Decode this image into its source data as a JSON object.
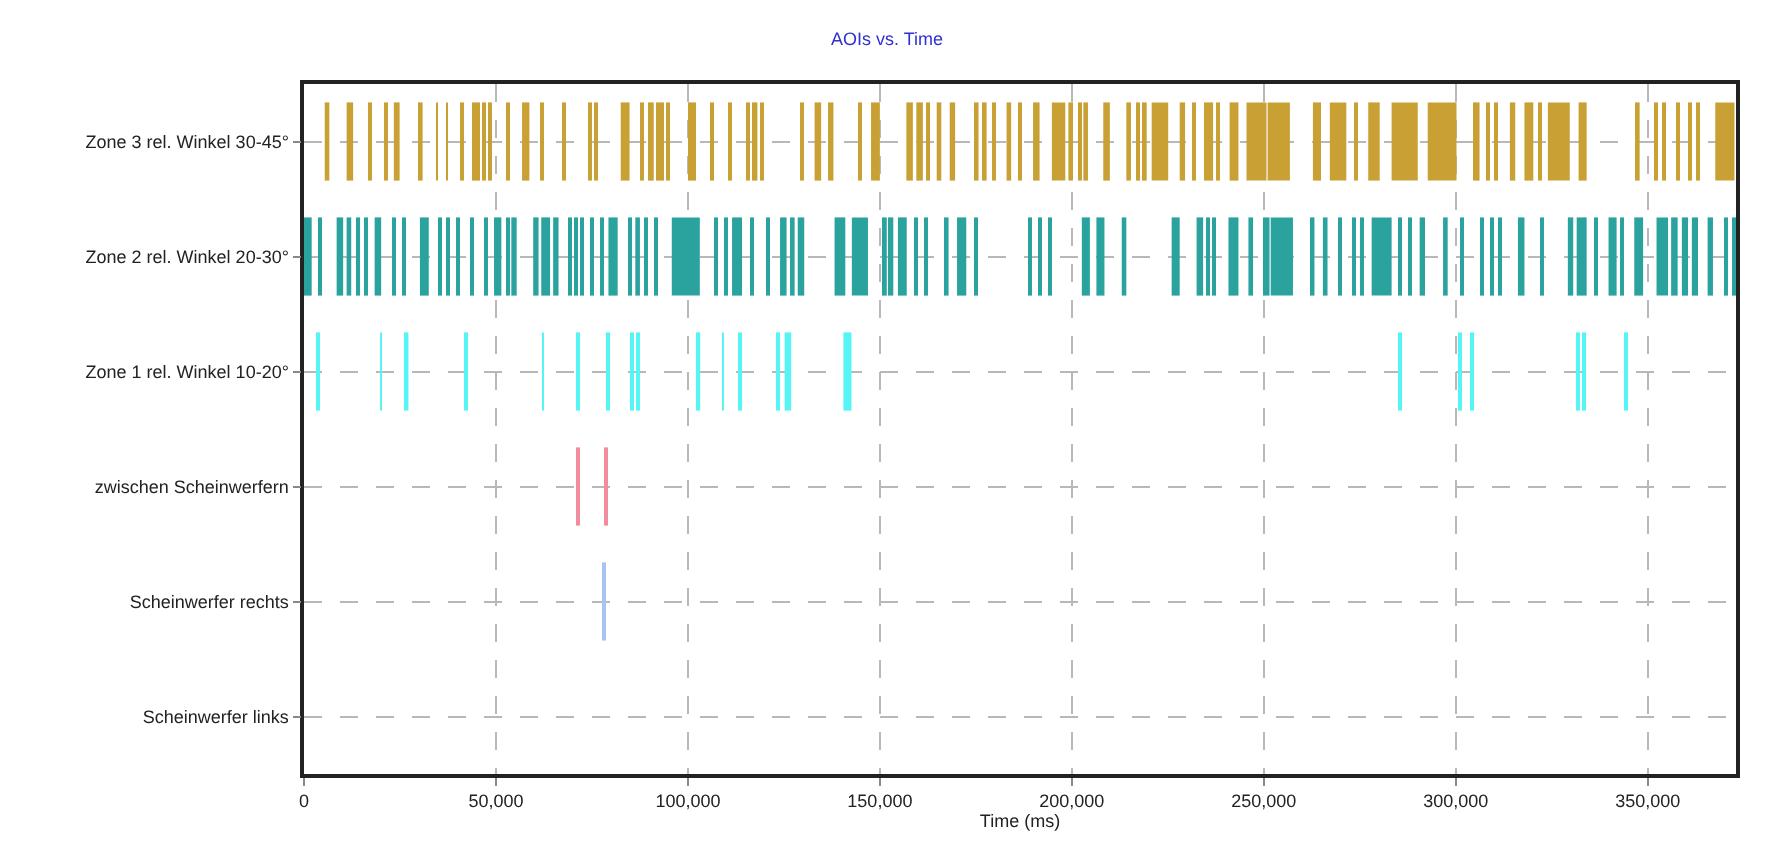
{
  "chart_data": {
    "type": "bar",
    "orientation": "horizontal",
    "title": "AOIs vs. Time",
    "xlabel": "Time (ms)",
    "categories": [
      "Zone 3 rel. Winkel 30-45°",
      "Zone 2 rel. Winkel 20-30°",
      "Zone 1 rel. Winkel 10-20°",
      "zwischen Scheinwerfern",
      "Scheinwerfer rechts",
      "Scheinwerfer links"
    ],
    "xlim": [
      0,
      373000
    ],
    "xticks": [
      0,
      {
        "value": 50000,
        "label": "50,000"
      },
      {
        "value": 100000,
        "label": "100,000"
      },
      {
        "value": 150000,
        "label": "150,000"
      },
      {
        "value": 200000,
        "label": "200,000"
      },
      {
        "value": 250000,
        "label": "250,000"
      },
      {
        "value": 300000,
        "label": "300,000"
      },
      {
        "value": 350000,
        "label": "350,000"
      }
    ],
    "grid": true,
    "series": [
      {
        "base": [
          5400,
          0,
          3300,
          71000,
          78100,
          null
        ],
        "values": [
          1200,
          2000,
          500,
          500,
          500,
          null
        ],
        "colors": [
          "#c9a033",
          "#2aa39f",
          "#55f5f5",
          "#f08c9c",
          "#a8c4f0",
          null
        ]
      },
      {
        "base": [
          11100,
          3800,
          19800,
          78500,
          null,
          null
        ],
        "values": [
          1700,
          900,
          500,
          500,
          null,
          null
        ],
        "colors": [
          "#c9a033",
          "#2aa39f",
          "#55f5f5",
          "#f08c9c",
          "#a8c4f0",
          null
        ]
      },
      {
        "base": [
          16800,
          8500,
          26200,
          null,
          null,
          null
        ],
        "values": [
          700,
          1700,
          1000,
          null,
          null,
          null
        ],
        "colors": [
          "#c9a033",
          "#2aa39f",
          "#55f5f5",
          "#f08c9c",
          "#a8c4f0",
          null
        ]
      },
      {
        "base": [
          21000,
          11100,
          42000,
          null,
          null,
          null
        ],
        "values": [
          700,
          1200,
          500,
          null,
          null,
          null
        ],
        "colors": [
          "#c9a033",
          "#2aa39f",
          "#55f5f5",
          "#f08c9c",
          "#a8c4f0",
          null
        ]
      },
      {
        "base": [
          23400,
          13700,
          62000,
          null,
          null,
          null
        ],
        "values": [
          1500,
          900,
          500,
          null,
          null,
          null
        ],
        "colors": [
          "#c9a033",
          "#2aa39f",
          "#55f5f5",
          "#f08c9c",
          "#a8c4f0",
          null
        ]
      },
      {
        "base": [
          29900,
          15800,
          71000,
          null,
          null,
          null
        ],
        "values": [
          1000,
          500,
          500,
          null,
          null,
          null
        ],
        "colors": [
          "#c9a033",
          "#2aa39f",
          "#55f5f5",
          "#f08c9c",
          "#a8c4f0",
          null
        ]
      },
      {
        "base": [
          34400,
          18400,
          78800,
          null,
          null,
          null
        ],
        "values": [
          500,
          1700,
          500,
          null,
          null,
          null
        ],
        "colors": [
          "#c9a033",
          "#2aa39f",
          "#55f5f5",
          "#f08c9c",
          "#a8c4f0",
          null
        ]
      },
      {
        "base": [
          37000,
          23300,
          85400,
          null,
          null,
          null
        ],
        "values": [
          500,
          500,
          500,
          null,
          null,
          null
        ],
        "colors": [
          "#c9a033",
          "#2aa39f",
          "#55f5f5",
          "#f08c9c",
          "#a8c4f0",
          null
        ]
      },
      {
        "base": [
          40800,
          25900,
          86900,
          null,
          null,
          null
        ],
        "values": [
          500,
          500,
          500,
          null,
          null,
          null
        ],
        "colors": [
          "#c9a033",
          "#2aa39f",
          "#55f5f5",
          "#f08c9c",
          "#a8c4f0",
          null
        ]
      },
      {
        "base": [
          43900,
          30200,
          102300,
          null,
          null,
          null
        ],
        "values": [
          600,
          2300,
          900,
          null,
          null,
          null
        ],
        "colors": [
          "#c9a033",
          "#2aa39f",
          "#55f5f5",
          "#f08c9c",
          "#a8c4f0",
          null
        ]
      },
      {
        "base": [
          45300,
          35400,
          108900,
          null,
          null,
          null
        ],
        "values": [
          500,
          500,
          500,
          null,
          null,
          null
        ],
        "colors": [
          "#c9a033",
          "#2aa39f",
          "#55f5f5",
          "#f08c9c",
          "#a8c4f0",
          null
        ]
      },
      {
        "base": [
          46700,
          37500,
          113200,
          null,
          null,
          null
        ],
        "values": [
          500,
          500,
          500,
          null,
          null,
          null
        ],
        "colors": [
          "#c9a033",
          "#2aa39f",
          "#55f5f5",
          "#f08c9c",
          "#a8c4f0",
          null
        ]
      },
      {
        "base": [
          48100,
          40100,
          123100,
          null,
          null,
          null
        ],
        "values": [
          500,
          500,
          500,
          null,
          null,
          null
        ],
        "colors": [
          "#c9a033",
          "#2aa39f",
          "#55f5f5",
          "#f08c9c",
          "#a8c4f0",
          null
        ]
      },
      {
        "base": [
          52800,
          43700,
          125200,
          null,
          null,
          null
        ],
        "values": [
          500,
          500,
          1700,
          null,
          null,
          null
        ],
        "colors": [
          "#c9a033",
          "#2aa39f",
          "#55f5f5",
          "#f08c9c",
          "#a8c4f0",
          null
        ]
      },
      {
        "base": [
          56800,
          47000,
          140500,
          null,
          null,
          null
        ],
        "values": [
          1900,
          500,
          2100,
          null,
          null,
          null
        ],
        "colors": [
          "#c9a033",
          "#2aa39f",
          "#55f5f5",
          "#f08c9c",
          "#a8c4f0",
          null
        ]
      },
      {
        "base": [
          61500,
          49500,
          285100,
          null,
          null,
          null
        ],
        "values": [
          500,
          1900,
          500,
          null,
          null,
          null
        ],
        "colors": [
          "#c9a033",
          "#2aa39f",
          "#55f5f5",
          "#f08c9c",
          "#a8c4f0",
          null
        ]
      },
      {
        "base": [
          67500,
          52800,
          300700,
          null,
          null,
          null
        ],
        "values": [
          500,
          500,
          500,
          null,
          null,
          null
        ],
        "colors": [
          "#c9a033",
          "#2aa39f",
          "#55f5f5",
          "#f08c9c",
          "#a8c4f0",
          null
        ]
      },
      {
        "base": [
          74000,
          54000,
          304200,
          null,
          null,
          null
        ],
        "values": [
          700,
          1400,
          500,
          null,
          null,
          null
        ],
        "colors": [
          "#c9a033",
          "#2aa39f",
          "#55f5f5",
          "#f08c9c",
          "#a8c4f0",
          null
        ]
      },
      {
        "base": [
          76000,
          59700,
          331400,
          null,
          null,
          null
        ],
        "values": [
          500,
          1400,
          500,
          null,
          null,
          null
        ],
        "colors": [
          "#c9a033",
          "#2aa39f",
          "#55f5f5",
          "#f08c9c",
          "#a8c4f0",
          null
        ]
      },
      {
        "base": [
          82500,
          61800,
          333200,
          null,
          null,
          null
        ],
        "values": [
          2300,
          2300,
          500,
          null,
          null,
          null
        ],
        "colors": [
          "#c9a033",
          "#2aa39f",
          "#55f5f5",
          "#f08c9c",
          "#a8c4f0",
          null
        ]
      },
      {
        "base": [
          87700,
          64900,
          344100,
          null,
          null,
          null
        ],
        "values": [
          500,
          1400,
          500,
          null,
          null,
          null
        ],
        "colors": [
          "#c9a033",
          "#2aa39f",
          "#55f5f5",
          "#f08c9c",
          "#a8c4f0",
          null
        ]
      },
      {
        "base": [
          90100,
          68900,
          null,
          null,
          null,
          null
        ],
        "values": [
          1000,
          500,
          null,
          null,
          null,
          null
        ],
        "colors": [
          "#c9a033",
          "#2aa39f",
          "#55f5f5",
          "#f08c9c",
          "#a8c4f0",
          null
        ]
      },
      {
        "base": [
          92000,
          70500,
          null,
          null,
          null,
          null
        ],
        "values": [
          500,
          500,
          null,
          null,
          null,
          null
        ],
        "colors": [
          "#c9a033",
          "#2aa39f",
          "#55f5f5",
          "#f08c9c",
          "#a8c4f0",
          null
        ]
      },
      {
        "base": [
          92900,
          72400,
          null,
          null,
          null,
          null
        ],
        "values": [
          500,
          500,
          null,
          null,
          null,
          null
        ],
        "colors": [
          "#c9a033",
          "#2aa39f",
          "#55f5f5",
          "#f08c9c",
          "#a8c4f0",
          null
        ]
      },
      {
        "base": [
          94600,
          74800,
          null,
          null,
          null,
          null
        ],
        "values": [
          500,
          500,
          null,
          null,
          null,
          null
        ],
        "colors": [
          "#c9a033",
          "#2aa39f",
          "#55f5f5",
          "#f08c9c",
          "#a8c4f0",
          null
        ]
      },
      {
        "base": [
          100500,
          77400,
          null,
          null,
          null,
          null
        ],
        "values": [
          500,
          500,
          null,
          null,
          null,
          null
        ],
        "colors": [
          "#c9a033",
          "#2aa39f",
          "#55f5f5",
          "#f08c9c",
          "#a8c4f0",
          null
        ]
      },
      {
        "base": [
          101400,
          79300,
          null,
          null,
          null,
          null
        ],
        "values": [
          500,
          2400,
          null,
          null,
          null,
          null
        ],
        "colors": [
          "#c9a033",
          "#2aa39f",
          "#55f5f5",
          "#f08c9c",
          "#a8c4f0",
          null
        ]
      },
      {
        "base": [
          106100,
          84900,
          null,
          null,
          null,
          null
        ],
        "values": [
          500,
          500,
          null,
          null,
          null,
          null
        ],
        "colors": [
          "#c9a033",
          "#2aa39f",
          "#55f5f5",
          "#f08c9c",
          "#a8c4f0",
          null
        ]
      },
      {
        "base": [
          110800,
          86300,
          null,
          null,
          null,
          null
        ],
        "values": [
          500,
          1200,
          null,
          null,
          null,
          null
        ],
        "colors": [
          "#c9a033",
          "#2aa39f",
          "#55f5f5",
          "#f08c9c",
          "#a8c4f0",
          null
        ]
      },
      {
        "base": [
          115300,
          88900,
          null,
          null,
          null,
          null
        ],
        "values": [
          500,
          500,
          null,
          null,
          null,
          null
        ],
        "colors": [
          "#c9a033",
          "#2aa39f",
          "#55f5f5",
          "#f08c9c",
          "#a8c4f0",
          null
        ]
      },
      {
        "base": [
          117200,
          91300,
          null,
          null,
          null,
          null
        ],
        "values": [
          900,
          500,
          null,
          null,
          null,
          null
        ],
        "colors": [
          "#c9a033",
          "#2aa39f",
          "#55f5f5",
          "#f08c9c",
          "#a8c4f0",
          null
        ]
      },
      {
        "base": [
          118900,
          95800,
          null,
          null,
          null,
          null
        ],
        "values": [
          900,
          7300,
          null,
          null,
          null,
          null
        ],
        "colors": [
          "#c9a033",
          "#2aa39f",
          "#55f5f5",
          "#f08c9c",
          "#a8c4f0",
          null
        ]
      },
      {
        "base": [
          129700,
          106900,
          null,
          null,
          null,
          null
        ],
        "values": [
          500,
          500,
          null,
          null,
          null,
          null
        ],
        "colors": [
          "#c9a033",
          "#2aa39f",
          "#55f5f5",
          "#f08c9c",
          "#a8c4f0",
          null
        ]
      },
      {
        "base": [
          133000,
          109500,
          null,
          null,
          null,
          null
        ],
        "values": [
          1700,
          500,
          null,
          null,
          null,
          null
        ],
        "colors": [
          "#c9a033",
          "#2aa39f",
          "#55f5f5",
          "#f08c9c",
          "#a8c4f0",
          null
        ]
      },
      {
        "base": [
          136500,
          111500,
          null,
          null,
          null,
          null
        ],
        "values": [
          1400,
          2600,
          null,
          null,
          null,
          null
        ],
        "colors": [
          "#c9a033",
          "#2aa39f",
          "#55f5f5",
          "#f08c9c",
          "#a8c4f0",
          null
        ]
      },
      {
        "base": [
          144400,
          116300,
          null,
          null,
          null,
          null
        ],
        "values": [
          500,
          500,
          null,
          null,
          null,
          null
        ],
        "colors": [
          "#c9a033",
          "#2aa39f",
          "#55f5f5",
          "#f08c9c",
          "#a8c4f0",
          null
        ]
      },
      {
        "base": [
          147700,
          120700,
          null,
          null,
          null,
          null
        ],
        "values": [
          2300,
          500,
          null,
          null,
          null,
          null
        ],
        "colors": [
          "#c9a033",
          "#2aa39f",
          "#55f5f5",
          "#f08c9c",
          "#a8c4f0",
          null
        ]
      },
      {
        "base": [
          156900,
          124000,
          null,
          null,
          null,
          null
        ],
        "values": [
          1700,
          1700,
          null,
          null,
          null,
          null
        ],
        "colors": [
          "#c9a033",
          "#2aa39f",
          "#55f5f5",
          "#f08c9c",
          "#a8c4f0",
          null
        ]
      },
      {
        "base": [
          159500,
          126600,
          null,
          null,
          null,
          null
        ],
        "values": [
          1700,
          1200,
          null,
          null,
          null,
          null
        ],
        "colors": [
          "#c9a033",
          "#2aa39f",
          "#55f5f5",
          "#f08c9c",
          "#a8c4f0",
          null
        ]
      },
      {
        "base": [
          162500,
          128600,
          null,
          null,
          null,
          null
        ],
        "values": [
          500,
          1700,
          null,
          null,
          null,
          null
        ],
        "colors": [
          "#c9a033",
          "#2aa39f",
          "#55f5f5",
          "#f08c9c",
          "#a8c4f0",
          null
        ]
      },
      {
        "base": [
          164800,
          138200,
          null,
          null,
          null,
          null
        ],
        "values": [
          1200,
          2800,
          null,
          null,
          null,
          null
        ],
        "colors": [
          "#c9a033",
          "#2aa39f",
          "#55f5f5",
          "#f08c9c",
          "#a8c4f0",
          null
        ]
      },
      {
        "base": [
          168200,
          142700,
          null,
          null,
          null,
          null
        ],
        "values": [
          1400,
          4200,
          null,
          null,
          null,
          null
        ],
        "colors": [
          "#c9a033",
          "#2aa39f",
          "#55f5f5",
          "#f08c9c",
          "#a8c4f0",
          null
        ]
      },
      {
        "base": [
          174800,
          150900,
          null,
          null,
          null,
          null
        ],
        "values": [
          900,
          900,
          null,
          null,
          null,
          null
        ],
        "colors": [
          "#c9a033",
          "#2aa39f",
          "#55f5f5",
          "#f08c9c",
          "#a8c4f0",
          null
        ]
      },
      {
        "base": [
          176900,
          152600,
          null,
          null,
          null,
          null
        ],
        "values": [
          900,
          900,
          null,
          null,
          null,
          null
        ],
        "colors": [
          "#c9a033",
          "#2aa39f",
          "#55f5f5",
          "#f08c9c",
          "#a8c4f0",
          null
        ]
      },
      {
        "base": [
          179500,
          154700,
          null,
          null,
          null,
          null
        ],
        "values": [
          500,
          2300,
          null,
          null,
          null,
          null
        ],
        "colors": [
          "#c9a033",
          "#2aa39f",
          "#55f5f5",
          "#f08c9c",
          "#a8c4f0",
          null
        ]
      },
      {
        "base": [
          183000,
          159200,
          null,
          null,
          null,
          null
        ],
        "values": [
          1200,
          500,
          null,
          null,
          null,
          null
        ],
        "colors": [
          "#c9a033",
          "#2aa39f",
          "#55f5f5",
          "#f08c9c",
          "#a8c4f0",
          null
        ]
      },
      {
        "base": [
          186100,
          161800,
          null,
          null,
          null,
          null
        ],
        "values": [
          500,
          500,
          null,
          null,
          null,
          null
        ],
        "colors": [
          "#c9a033",
          "#2aa39f",
          "#55f5f5",
          "#f08c9c",
          "#a8c4f0",
          null
        ]
      },
      {
        "base": [
          189900,
          167000,
          null,
          null,
          null,
          null
        ],
        "values": [
          1700,
          900,
          null,
          null,
          null,
          null
        ],
        "colors": [
          "#c9a033",
          "#2aa39f",
          "#55f5f5",
          "#f08c9c",
          "#a8c4f0",
          null
        ]
      },
      {
        "base": [
          194800,
          170100,
          null,
          null,
          null,
          null
        ],
        "values": [
          3500,
          2400,
          null,
          null,
          null,
          null
        ],
        "colors": [
          "#c9a033",
          "#2aa39f",
          "#55f5f5",
          "#f08c9c",
          "#a8c4f0",
          null
        ]
      },
      {
        "base": [
          199100,
          174800,
          null,
          null,
          null,
          null
        ],
        "values": [
          1200,
          500,
          null,
          null,
          null,
          null
        ],
        "colors": [
          "#c9a033",
          "#2aa39f",
          "#55f5f5",
          "#f08c9c",
          "#a8c4f0",
          null
        ]
      },
      {
        "base": [
          202100,
          189100,
          null,
          null,
          null,
          null
        ],
        "values": [
          500,
          500,
          null,
          null,
          null,
          null
        ],
        "colors": [
          "#c9a033",
          "#2aa39f",
          "#55f5f5",
          "#f08c9c",
          "#a8c4f0",
          null
        ]
      },
      {
        "base": [
          203000,
          191700,
          null,
          null,
          null,
          null
        ],
        "values": [
          1200,
          500,
          null,
          null,
          null,
          null
        ],
        "colors": [
          "#c9a033",
          "#2aa39f",
          "#55f5f5",
          "#f08c9c",
          "#a8c4f0",
          null
        ]
      },
      {
        "base": [
          208200,
          193900,
          null,
          null,
          null,
          null
        ],
        "values": [
          1700,
          500,
          null,
          null,
          null,
          null
        ],
        "colors": [
          "#c9a033",
          "#2aa39f",
          "#55f5f5",
          "#f08c9c",
          "#a8c4f0",
          null
        ]
      },
      {
        "base": [
          214200,
          202600,
          null,
          null,
          null,
          null
        ],
        "values": [
          1200,
          2100,
          null,
          null,
          null,
          null
        ],
        "colors": [
          "#c9a033",
          "#2aa39f",
          "#55f5f5",
          "#f08c9c",
          "#a8c4f0",
          null
        ]
      },
      {
        "base": [
          216800,
          206400,
          null,
          null,
          null,
          null
        ],
        "values": [
          500,
          2100,
          null,
          null,
          null,
          null
        ],
        "colors": [
          "#c9a033",
          "#2aa39f",
          "#55f5f5",
          "#f08c9c",
          "#a8c4f0",
          null
        ]
      },
      {
        "base": [
          218600,
          213000,
          null,
          null,
          null,
          null
        ],
        "values": [
          900,
          1200,
          null,
          null,
          null,
          null
        ],
        "colors": [
          "#c9a033",
          "#2aa39f",
          "#55f5f5",
          "#f08c9c",
          "#a8c4f0",
          null
        ]
      },
      {
        "base": [
          220800,
          226000,
          null,
          null,
          null,
          null
        ],
        "values": [
          4300,
          2100,
          null,
          null,
          null,
          null
        ],
        "colors": [
          "#c9a033",
          "#2aa39f",
          "#55f5f5",
          "#f08c9c",
          "#a8c4f0",
          null
        ]
      },
      {
        "base": [
          228100,
          232500,
          null,
          null,
          null,
          null
        ],
        "values": [
          1400,
          1700,
          null,
          null,
          null,
          null
        ],
        "colors": [
          "#c9a033",
          "#2aa39f",
          "#55f5f5",
          "#f08c9c",
          "#a8c4f0",
          null
        ]
      },
      {
        "base": [
          231600,
          235400,
          null,
          null,
          null,
          null
        ],
        "values": [
          500,
          500,
          null,
          null,
          null,
          null
        ],
        "colors": [
          "#c9a033",
          "#2aa39f",
          "#55f5f5",
          "#f08c9c",
          "#a8c4f0",
          null
        ]
      },
      {
        "base": [
          234500,
          236800,
          null,
          null,
          null,
          null
        ],
        "values": [
          500,
          500,
          null,
          null,
          null,
          null
        ],
        "colors": [
          "#c9a033",
          "#2aa39f",
          "#55f5f5",
          "#f08c9c",
          "#a8c4f0",
          null
        ]
      },
      {
        "base": [
          235900,
          240800,
          null,
          null,
          null,
          null
        ],
        "values": [
          900,
          2600,
          null,
          null,
          null,
          null
        ],
        "colors": [
          "#c9a033",
          "#2aa39f",
          "#55f5f5",
          "#f08c9c",
          "#a8c4f0",
          null
        ]
      },
      {
        "base": [
          238000,
          246000,
          null,
          null,
          null,
          null
        ],
        "values": [
          500,
          1200,
          null,
          null,
          null,
          null
        ],
        "colors": [
          "#c9a033",
          "#2aa39f",
          "#55f5f5",
          "#f08c9c",
          "#a8c4f0",
          null
        ]
      },
      {
        "base": [
          241100,
          249800,
          null,
          null,
          null,
          null
        ],
        "values": [
          2300,
          1700,
          null,
          null,
          null,
          null
        ],
        "colors": [
          "#c9a033",
          "#2aa39f",
          "#55f5f5",
          "#f08c9c",
          "#a8c4f0",
          null
        ]
      },
      {
        "base": [
          245500,
          251800,
          null,
          null,
          null,
          null
        ],
        "values": [
          5200,
          5800,
          null,
          null,
          null,
          null
        ],
        "colors": [
          "#c9a033",
          "#2aa39f",
          "#55f5f5",
          "#f08c9c",
          "#a8c4f0",
          null
        ]
      },
      {
        "base": [
          251000,
          262300,
          null,
          null,
          null,
          null
        ],
        "values": [
          5800,
          900,
          null,
          null,
          null,
          null
        ],
        "colors": [
          "#c9a033",
          "#2aa39f",
          "#55f5f5",
          "#f08c9c",
          "#a8c4f0",
          null
        ]
      },
      {
        "base": [
          262800,
          265400,
          null,
          null,
          null,
          null
        ],
        "values": [
          2100,
          1200,
          null,
          null,
          null,
          null
        ],
        "colors": [
          "#c9a033",
          "#2aa39f",
          "#55f5f5",
          "#f08c9c",
          "#a8c4f0",
          null
        ]
      },
      {
        "base": [
          267200,
          269800,
          null,
          null,
          null,
          null
        ],
        "values": [
          4300,
          500,
          null,
          null,
          null,
          null
        ],
        "colors": [
          "#c9a033",
          "#2aa39f",
          "#55f5f5",
          "#f08c9c",
          "#a8c4f0",
          null
        ]
      },
      {
        "base": [
          273800,
          273300,
          null,
          null,
          null,
          null
        ],
        "values": [
          500,
          500,
          null,
          null,
          null,
          null
        ],
        "colors": [
          "#c9a033",
          "#2aa39f",
          "#55f5f5",
          "#f08c9c",
          "#a8c4f0",
          null
        ]
      },
      {
        "base": [
          277200,
          275300,
          null,
          null,
          null,
          null
        ],
        "values": [
          3000,
          500,
          null,
          null,
          null,
          null
        ],
        "colors": [
          "#c9a033",
          "#2aa39f",
          "#55f5f5",
          "#f08c9c",
          "#a8c4f0",
          null
        ]
      },
      {
        "base": [
          283300,
          278100,
          null,
          null,
          null,
          null
        ],
        "values": [
          6800,
          5200,
          null,
          null,
          null,
          null
        ],
        "colors": [
          "#c9a033",
          "#2aa39f",
          "#55f5f5",
          "#f08c9c",
          "#a8c4f0",
          null
        ]
      },
      {
        "base": [
          292700,
          285400,
          null,
          null,
          null,
          null
        ],
        "values": [
          7500,
          500,
          null,
          null,
          null,
          null
        ],
        "colors": [
          "#c9a033",
          "#2aa39f",
          "#55f5f5",
          "#f08c9c",
          "#a8c4f0",
          null
        ]
      },
      {
        "base": [
          304500,
          288000,
          null,
          null,
          null,
          null
        ],
        "values": [
          1700,
          500,
          null,
          null,
          null,
          null
        ],
        "colors": [
          "#c9a033",
          "#2aa39f",
          "#55f5f5",
          "#f08c9c",
          "#a8c4f0",
          null
        ]
      },
      {
        "base": [
          308000,
          290600,
          null,
          null,
          null,
          null
        ],
        "values": [
          500,
          1400,
          null,
          null,
          null,
          null
        ],
        "colors": [
          "#c9a033",
          "#2aa39f",
          "#55f5f5",
          "#f08c9c",
          "#a8c4f0",
          null
        ]
      },
      {
        "base": [
          310100,
          296700,
          null,
          null,
          null,
          null
        ],
        "values": [
          500,
          1200,
          null,
          null,
          null,
          null
        ],
        "colors": [
          "#c9a033",
          "#2aa39f",
          "#55f5f5",
          "#f08c9c",
          "#a8c4f0",
          null
        ]
      },
      {
        "base": [
          314100,
          301600,
          null,
          null,
          null,
          null
        ],
        "values": [
          1400,
          500,
          null,
          null,
          null,
          null
        ],
        "colors": [
          "#c9a033",
          "#2aa39f",
          "#55f5f5",
          "#f08c9c",
          "#a8c4f0",
          null
        ]
      },
      {
        "base": [
          317900,
          306800,
          null,
          null,
          null,
          null
        ],
        "values": [
          2300,
          500,
          null,
          null,
          null,
          null
        ],
        "colors": [
          "#c9a033",
          "#2aa39f",
          "#55f5f5",
          "#f08c9c",
          "#a8c4f0",
          null
        ]
      },
      {
        "base": [
          321500,
          309400,
          null,
          null,
          null,
          null
        ],
        "values": [
          500,
          500,
          null,
          null,
          null,
          null
        ],
        "colors": [
          "#c9a033",
          "#2aa39f",
          "#55f5f5",
          "#f08c9c",
          "#a8c4f0",
          null
        ]
      },
      {
        "base": [
          324000,
          311100,
          null,
          null,
          null,
          null
        ],
        "values": [
          5700,
          500,
          null,
          null,
          null,
          null
        ],
        "colors": [
          "#c9a033",
          "#2aa39f",
          "#55f5f5",
          "#f08c9c",
          "#a8c4f0",
          null
        ]
      },
      {
        "base": [
          332000,
          316200,
          null,
          null,
          null,
          null
        ],
        "values": [
          2100,
          1700,
          null,
          null,
          null,
          null
        ],
        "colors": [
          "#c9a033",
          "#2aa39f",
          "#55f5f5",
          "#f08c9c",
          "#a8c4f0",
          null
        ]
      },
      {
        "base": [
          346700,
          322400,
          null,
          null,
          null,
          null
        ],
        "values": [
          1200,
          500,
          null,
          null,
          null,
          null
        ],
        "colors": [
          "#c9a033",
          "#2aa39f",
          "#55f5f5",
          "#f08c9c",
          "#a8c4f0",
          null
        ]
      },
      {
        "base": [
          351700,
          329200,
          null,
          null,
          null,
          null
        ],
        "values": [
          500,
          1400,
          null,
          null,
          null,
          null
        ],
        "colors": [
          "#c9a033",
          "#2aa39f",
          "#55f5f5",
          "#f08c9c",
          "#a8c4f0",
          null
        ]
      },
      {
        "base": [
          354000,
          331500,
          null,
          null,
          null,
          null
        ],
        "values": [
          500,
          2600,
          null,
          null,
          null,
          null
        ],
        "colors": [
          "#c9a033",
          "#2aa39f",
          "#55f5f5",
          "#f08c9c",
          "#a8c4f0",
          null
        ]
      },
      {
        "base": [
          357500,
          336300,
          null,
          null,
          null,
          null
        ],
        "values": [
          500,
          500,
          null,
          null,
          null,
          null
        ],
        "colors": [
          "#c9a033",
          "#2aa39f",
          "#55f5f5",
          "#f08c9c",
          "#a8c4f0",
          null
        ]
      },
      {
        "base": [
          360600,
          339800,
          null,
          null,
          null,
          null
        ],
        "values": [
          500,
          2100,
          null,
          null,
          null,
          null
        ],
        "colors": [
          "#c9a033",
          "#2aa39f",
          "#55f5f5",
          "#f08c9c",
          "#a8c4f0",
          null
        ]
      },
      {
        "base": [
          363000,
          343200,
          null,
          null,
          null,
          null
        ],
        "values": [
          500,
          500,
          null,
          null,
          null,
          null
        ],
        "colors": [
          "#c9a033",
          "#2aa39f",
          "#55f5f5",
          "#f08c9c",
          "#a8c4f0",
          null
        ]
      },
      {
        "base": [
          367600,
          346500,
          null,
          null,
          null,
          null
        ],
        "values": [
          5000,
          2300,
          null,
          null,
          null,
          null
        ],
        "colors": [
          "#c9a033",
          "#2aa39f",
          "#55f5f5",
          "#f08c9c",
          "#a8c4f0",
          null
        ]
      },
      {
        "base": [
          null,
          352300,
          null,
          null,
          null,
          null
        ],
        "values": [
          null,
          3000,
          null,
          null,
          null,
          null
        ],
        "colors": [
          "#c9a033",
          "#2aa39f",
          "#55f5f5",
          "#f08c9c",
          "#a8c4f0",
          null
        ]
      },
      {
        "base": [
          null,
          356100,
          null,
          null,
          null,
          null
        ],
        "values": [
          null,
          1700,
          null,
          null,
          null,
          null
        ],
        "colors": [
          "#c9a033",
          "#2aa39f",
          "#55f5f5",
          "#f08c9c",
          "#a8c4f0",
          null
        ]
      },
      {
        "base": [
          null,
          358900,
          null,
          null,
          null,
          null
        ],
        "values": [
          null,
          1600,
          null,
          null,
          null,
          null
        ],
        "colors": [
          "#c9a033",
          "#2aa39f",
          "#55f5f5",
          "#f08c9c",
          "#a8c4f0",
          null
        ]
      },
      {
        "base": [
          null,
          361500,
          null,
          null,
          null,
          null
        ],
        "values": [
          null,
          1600,
          null,
          null,
          null,
          null
        ],
        "colors": [
          "#c9a033",
          "#2aa39f",
          "#55f5f5",
          "#f08c9c",
          "#a8c4f0",
          null
        ]
      },
      {
        "base": [
          null,
          365600,
          null,
          null,
          null,
          null
        ],
        "values": [
          null,
          1400,
          null,
          null,
          null,
          null
        ],
        "colors": [
          "#c9a033",
          "#2aa39f",
          "#55f5f5",
          "#f08c9c",
          "#a8c4f0",
          null
        ]
      },
      {
        "base": [
          null,
          370100,
          null,
          null,
          null,
          null
        ],
        "values": [
          null,
          500,
          null,
          null,
          null,
          null
        ],
        "colors": [
          "#c9a033",
          "#2aa39f",
          "#55f5f5",
          "#f08c9c",
          "#a8c4f0",
          null
        ]
      },
      {
        "base": [
          null,
          372400,
          null,
          null,
          null,
          null
        ],
        "values": [
          null,
          500,
          null,
          null,
          null,
          null
        ],
        "colors": [
          "#c9a033",
          "#2aa39f",
          "#55f5f5",
          "#f08c9c",
          "#a8c4f0",
          null
        ]
      }
    ]
  }
}
